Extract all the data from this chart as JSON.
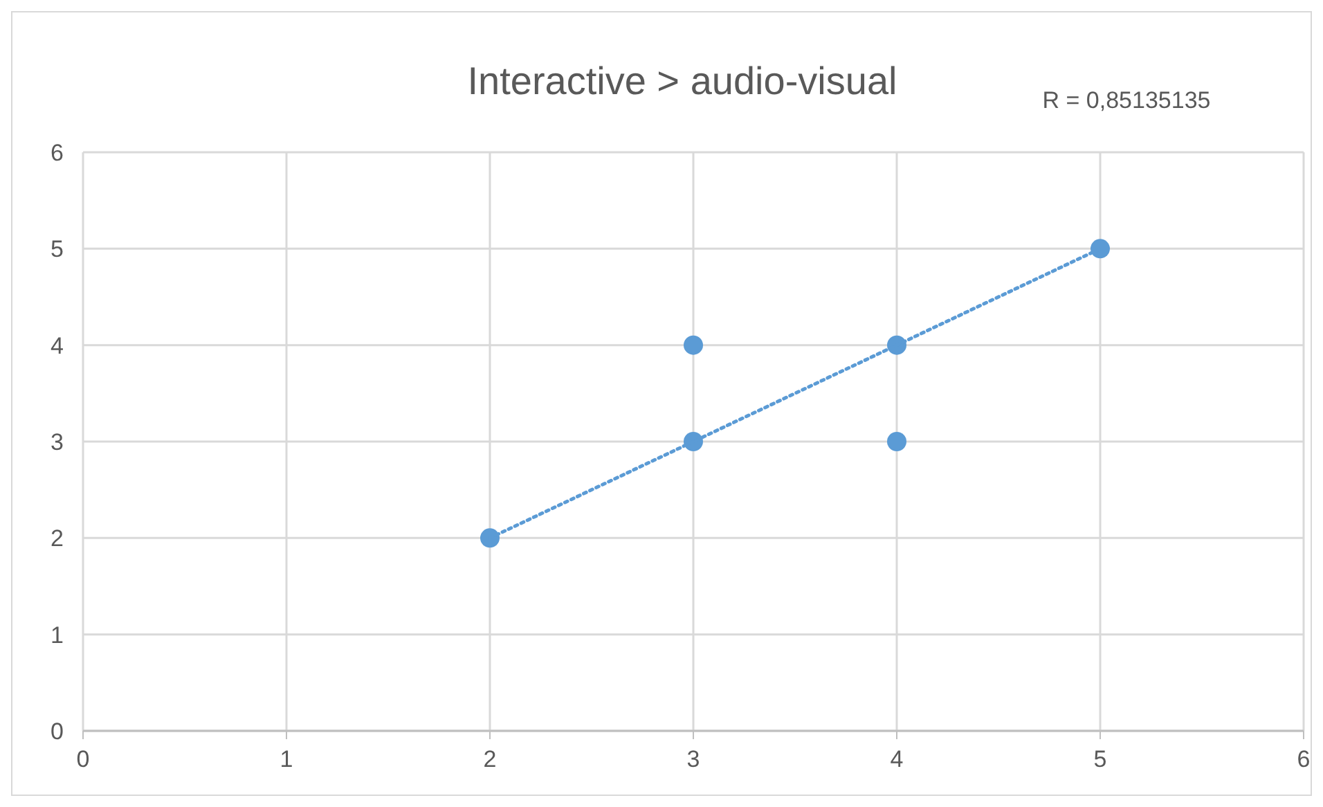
{
  "chart_data": {
    "type": "scatter",
    "title": "Interactive > audio-visual",
    "annotations": [
      "R = 0,85135135"
    ],
    "series": [
      {
        "type": "scatter",
        "color": "#5b9bd5",
        "x": [
          2,
          3,
          3,
          4,
          4,
          5
        ],
        "values": [
          2,
          3,
          4,
          4,
          3,
          5
        ],
        "marker": "circle"
      },
      {
        "type": "line",
        "color": "#5b9bd5",
        "x": [
          2,
          5
        ],
        "values": [
          2,
          5
        ],
        "line_style": "dotted",
        "marker": "none"
      }
    ],
    "xlim": [
      0,
      6
    ],
    "xticks": [
      0,
      1,
      2,
      3,
      4,
      5,
      6
    ],
    "ylim": [
      0,
      6
    ],
    "yticks": [
      0,
      1,
      2,
      3,
      4,
      5,
      6
    ],
    "grid": true
  }
}
